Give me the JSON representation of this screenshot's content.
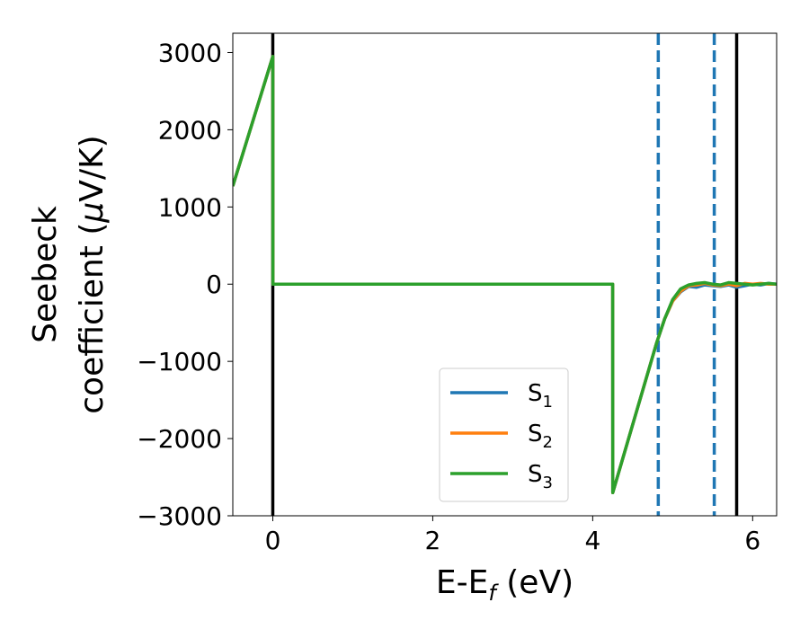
{
  "chart_data": {
    "type": "line",
    "xlabel": "E-E",
    "xlabel_sub": "f",
    "xlabel_unit": " (eV)",
    "ylabel_line1": "Seebeck",
    "ylabel_line2": "coefficient  (",
    "ylabel_mu": "μ",
    "ylabel_unit": "V/K)",
    "xlim": [
      -0.5,
      6.3
    ],
    "ylim": [
      -3000,
      3250
    ],
    "xticks": [
      0,
      2,
      4,
      6
    ],
    "yticks": [
      -3000,
      -2000,
      -1000,
      0,
      1000,
      2000,
      3000
    ],
    "ytick_labels": [
      "−3000",
      "−2000",
      "−1000",
      "0",
      "1000",
      "2000",
      "3000"
    ],
    "legend_position": "lower-center",
    "vlines": [
      {
        "x": 0.0,
        "style": "solid",
        "color": "#000000"
      },
      {
        "x": 4.82,
        "style": "dashed",
        "color": "#1f77b4"
      },
      {
        "x": 5.52,
        "style": "dashed",
        "color": "#1f77b4"
      },
      {
        "x": 5.8,
        "style": "solid",
        "color": "#000000"
      }
    ],
    "series": [
      {
        "name": "S",
        "sub": "1",
        "color": "#1f77b4",
        "x": [
          -0.5,
          0.0,
          0.001,
          4.25,
          4.251,
          4.8,
          4.9,
          5.0,
          5.1,
          5.2,
          5.3,
          5.4,
          5.5,
          5.6,
          5.7,
          5.8,
          5.9,
          6.0,
          6.1,
          6.2,
          6.3
        ],
        "y": [
          1270,
          2950,
          0,
          0,
          -2700,
          -760,
          -450,
          -220,
          -100,
          -30,
          -40,
          -10,
          -20,
          -30,
          -10,
          -40,
          -20,
          0,
          -10,
          10,
          0
        ]
      },
      {
        "name": "S",
        "sub": "2",
        "color": "#ff7f0e",
        "x": [
          -0.5,
          0.0,
          0.001,
          4.25,
          4.251,
          4.8,
          4.9,
          5.0,
          5.1,
          5.2,
          5.3,
          5.4,
          5.5,
          5.6,
          5.7,
          5.8,
          5.9,
          6.0,
          6.1,
          6.2,
          6.3
        ],
        "y": [
          1270,
          2950,
          0,
          0,
          -2700,
          -760,
          -450,
          -220,
          -90,
          -20,
          -10,
          10,
          -10,
          -20,
          0,
          -20,
          10,
          0,
          10,
          0,
          0
        ]
      },
      {
        "name": "S",
        "sub": "3",
        "color": "#2ca02c",
        "x": [
          -0.5,
          0.0,
          0.001,
          4.25,
          4.251,
          4.8,
          4.9,
          5.0,
          5.1,
          5.2,
          5.3,
          5.4,
          5.5,
          5.6,
          5.7,
          5.8,
          5.9,
          6.0,
          6.1,
          6.2,
          6.3
        ],
        "y": [
          1270,
          2950,
          0,
          0,
          -2700,
          -760,
          -450,
          -200,
          -60,
          -10,
          10,
          20,
          0,
          -10,
          20,
          10,
          0,
          -10,
          0,
          10,
          0
        ]
      }
    ]
  }
}
